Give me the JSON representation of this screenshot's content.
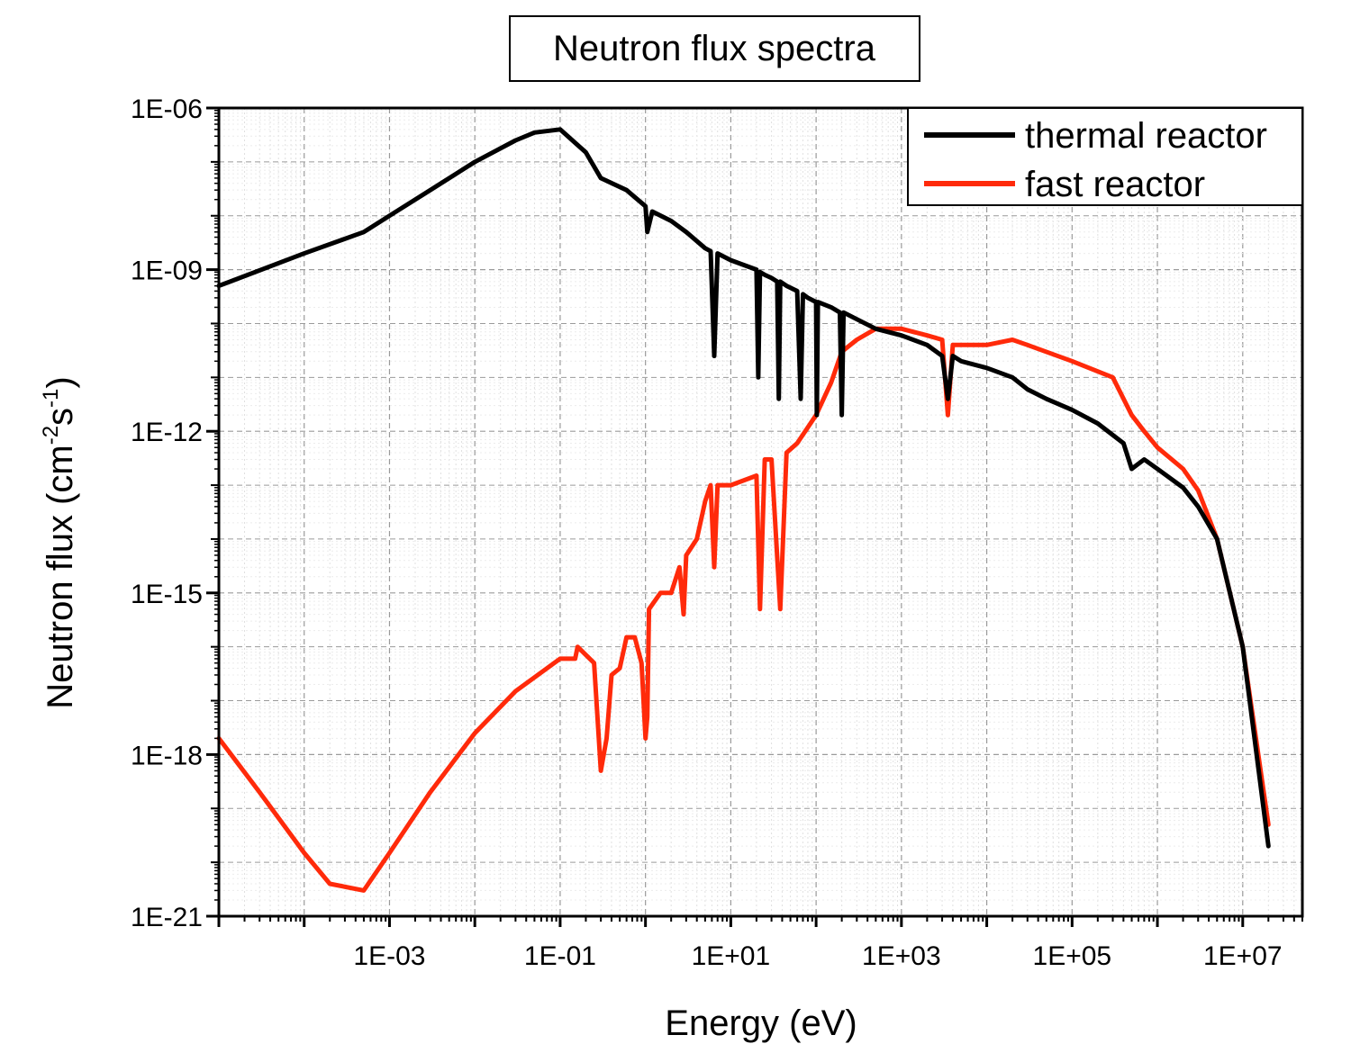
{
  "chart_data": {
    "type": "line",
    "title": "Neutron flux spectra",
    "xlabel": "Energy (eV)",
    "ylabel_main": "Neutron flux (cm",
    "ylabel_exp1": "-2",
    "ylabel_mid": "s",
    "ylabel_exp2": "-1",
    "ylabel_end": ")",
    "x_scale": "log",
    "y_scale": "log",
    "xlim": [
      1e-05,
      50000000
    ],
    "ylim": [
      1e-21,
      1e-06
    ],
    "x_ticks": [
      0.001,
      0.1,
      10,
      1000,
      100000,
      10000000
    ],
    "x_tick_labels": [
      "1E-03",
      "1E-01",
      "1E+01",
      "1E+03",
      "1E+05",
      "1E+07"
    ],
    "y_ticks": [
      1e-21,
      1e-18,
      1e-15,
      1e-12,
      1e-09,
      1e-06
    ],
    "y_tick_labels": [
      "1E-21",
      "1E-18",
      "1E-15",
      "1E-12",
      "1E-09",
      "1E-06"
    ],
    "grid": true,
    "legend_position": "top-right",
    "series": [
      {
        "name": "thermal reactor",
        "color": "#000000",
        "x": [
          1e-05,
          0.0001,
          0.0005,
          0.001,
          0.003,
          0.01,
          0.03,
          0.05,
          0.1,
          0.2,
          0.3,
          0.6,
          1.0,
          1.05,
          1.2,
          2,
          3,
          5,
          5.8,
          6.4,
          7,
          10,
          20,
          21,
          22,
          25,
          30,
          35,
          36.5,
          38,
          45,
          60,
          66,
          70,
          80,
          100,
          102,
          105,
          150,
          190,
          200,
          210,
          300,
          500,
          1000,
          2000,
          3000,
          3500,
          4000,
          5000,
          10000,
          20000,
          30000,
          50000,
          100000,
          200000,
          400000,
          500000,
          700000,
          1000000,
          2000000,
          3000000,
          5000000,
          10000000,
          20000000
        ],
        "y": [
          5e-10,
          2e-09,
          5e-09,
          1e-08,
          3e-08,
          1e-07,
          2.5e-07,
          3.5e-07,
          4e-07,
          1.5e-07,
          5e-08,
          3e-08,
          1.5e-08,
          5e-09,
          1.2e-08,
          8e-09,
          5e-09,
          2.5e-09,
          2.2e-09,
          2.5e-11,
          2e-09,
          1.5e-09,
          1e-09,
          1e-11,
          9e-10,
          8e-10,
          7e-10,
          6e-10,
          4e-12,
          6e-10,
          5e-10,
          4e-10,
          4e-12,
          3.5e-10,
          3e-10,
          2.5e-10,
          2e-12,
          2.5e-10,
          2e-10,
          1.6e-10,
          2e-12,
          1.6e-10,
          1.2e-10,
          8e-11,
          6e-11,
          4e-11,
          2.5e-11,
          4e-12,
          2.5e-11,
          2e-11,
          1.5e-11,
          1e-11,
          6e-12,
          4e-12,
          2.5e-12,
          1.4e-12,
          6e-13,
          2e-13,
          3e-13,
          2e-13,
          9e-14,
          4e-14,
          1e-14,
          1e-16,
          2e-20
        ]
      },
      {
        "name": "fast reactor",
        "color": "#ff2a0a",
        "x": [
          1e-05,
          3e-05,
          0.0001,
          0.0002,
          0.0005,
          0.001,
          0.003,
          0.01,
          0.03,
          0.1,
          0.15,
          0.16,
          0.25,
          0.3,
          0.35,
          0.4,
          0.5,
          0.6,
          0.75,
          0.9,
          1.0,
          1.05,
          1.1,
          1.5,
          2,
          2.5,
          2.8,
          3,
          4,
          5,
          5.8,
          6.4,
          7,
          10,
          20,
          22,
          25,
          30,
          38,
          45,
          60,
          100,
          150,
          200,
          300,
          500,
          1000,
          2000,
          3000,
          3500,
          4000,
          5000,
          10000,
          20000,
          30000,
          100000,
          300000,
          500000,
          700000,
          1000000,
          2000000,
          3000000,
          5000000,
          10000000,
          20000000
        ],
        "y": [
          2e-18,
          2e-19,
          1.5e-20,
          4e-21,
          3e-21,
          1.5e-20,
          2e-19,
          2.5e-18,
          1.5e-17,
          6e-17,
          6e-17,
          1e-16,
          5e-17,
          5e-19,
          2e-18,
          3e-17,
          4e-17,
          1.5e-16,
          1.5e-16,
          5e-17,
          2e-18,
          5e-18,
          5e-16,
          1e-15,
          1e-15,
          3e-15,
          4e-16,
          5e-15,
          1e-14,
          5e-14,
          1e-13,
          3e-15,
          1e-13,
          1e-13,
          1.5e-13,
          5e-16,
          3e-13,
          3e-13,
          5e-16,
          4e-13,
          6e-13,
          2e-12,
          8e-12,
          3e-11,
          5e-11,
          8e-11,
          8e-11,
          6e-11,
          5e-11,
          2e-12,
          4e-11,
          4e-11,
          4e-11,
          5e-11,
          4e-11,
          2e-11,
          1e-11,
          2e-12,
          1e-12,
          5e-13,
          2e-13,
          8e-14,
          1e-14,
          1e-16,
          5e-20
        ]
      }
    ]
  }
}
